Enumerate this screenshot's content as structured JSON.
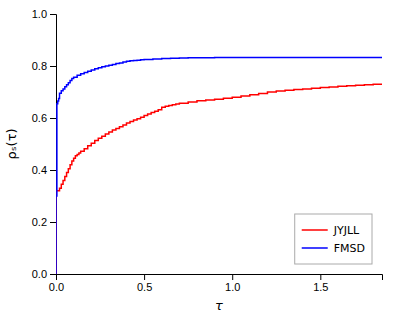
{
  "chart_data": {
    "type": "line",
    "xlabel": "τ",
    "ylabel": "ρₛ(τ)",
    "xlim": [
      0,
      1.85
    ],
    "ylim": [
      0,
      1.0
    ],
    "xticks": [
      {
        "value": 0,
        "label": "0.0"
      },
      0.5,
      {
        "value": 1.0,
        "label": "1.0"
      },
      1.5
    ],
    "yticks": [
      {
        "value": 0,
        "label": "0.0"
      },
      0.2,
      0.4,
      0.6,
      0.8,
      {
        "value": 1.0,
        "label": "1.0"
      }
    ],
    "legend": "lower right",
    "series": [
      {
        "name": "JYJLL",
        "color": "#ff0000",
        "line_style": "step",
        "x": [
          0.0,
          0.0,
          0.02,
          0.03,
          0.04,
          0.05,
          0.06,
          0.07,
          0.08,
          0.09,
          0.1,
          0.11,
          0.12,
          0.13,
          0.14,
          0.16,
          0.18,
          0.2,
          0.22,
          0.24,
          0.26,
          0.28,
          0.3,
          0.32,
          0.34,
          0.36,
          0.38,
          0.4,
          0.42,
          0.44,
          0.46,
          0.48,
          0.5,
          0.52,
          0.54,
          0.56,
          0.58,
          0.6,
          0.62,
          0.64,
          0.66,
          0.68,
          0.7,
          0.75,
          0.8,
          0.85,
          0.9,
          0.95,
          1.0,
          1.05,
          1.1,
          1.15,
          1.2,
          1.25,
          1.3,
          1.35,
          1.4,
          1.45,
          1.5,
          1.55,
          1.6,
          1.65,
          1.7,
          1.75,
          1.8,
          1.85
        ],
        "values": [
          0.0,
          0.32,
          0.33,
          0.345,
          0.36,
          0.375,
          0.39,
          0.405,
          0.42,
          0.435,
          0.445,
          0.455,
          0.46,
          0.465,
          0.472,
          0.482,
          0.493,
          0.503,
          0.513,
          0.522,
          0.53,
          0.538,
          0.546,
          0.554,
          0.56,
          0.566,
          0.573,
          0.581,
          0.587,
          0.592,
          0.597,
          0.603,
          0.61,
          0.615,
          0.621,
          0.626,
          0.632,
          0.641,
          0.645,
          0.648,
          0.651,
          0.654,
          0.657,
          0.662,
          0.666,
          0.669,
          0.672,
          0.676,
          0.68,
          0.685,
          0.689,
          0.694,
          0.7,
          0.704,
          0.707,
          0.71,
          0.712,
          0.714,
          0.717,
          0.719,
          0.722,
          0.724,
          0.726,
          0.728,
          0.73,
          0.73
        ]
      },
      {
        "name": "FMSD",
        "color": "#0000ff",
        "line_style": "step",
        "x": [
          0.0,
          0.0,
          0.005,
          0.01,
          0.015,
          0.02,
          0.03,
          0.04,
          0.05,
          0.06,
          0.07,
          0.08,
          0.09,
          0.1,
          0.12,
          0.14,
          0.16,
          0.18,
          0.2,
          0.22,
          0.24,
          0.26,
          0.28,
          0.3,
          0.32,
          0.34,
          0.36,
          0.38,
          0.4,
          0.42,
          0.44,
          0.46,
          0.48,
          0.5,
          0.55,
          0.6,
          0.65,
          0.7,
          0.75,
          0.8,
          0.9,
          1.0,
          1.1,
          1.2,
          1.3,
          1.4,
          1.5,
          1.6,
          1.7,
          1.8,
          1.85
        ],
        "values": [
          0.0,
          0.3,
          0.655,
          0.665,
          0.675,
          0.695,
          0.705,
          0.712,
          0.72,
          0.728,
          0.736,
          0.744,
          0.752,
          0.757,
          0.764,
          0.77,
          0.775,
          0.78,
          0.785,
          0.789,
          0.793,
          0.797,
          0.8,
          0.803,
          0.806,
          0.81,
          0.812,
          0.815,
          0.818,
          0.82,
          0.821,
          0.822,
          0.824,
          0.825,
          0.827,
          0.829,
          0.83,
          0.831,
          0.832,
          0.832,
          0.833,
          0.833,
          0.833,
          0.833,
          0.833,
          0.833,
          0.833,
          0.833,
          0.833,
          0.833,
          0.833
        ]
      }
    ]
  }
}
